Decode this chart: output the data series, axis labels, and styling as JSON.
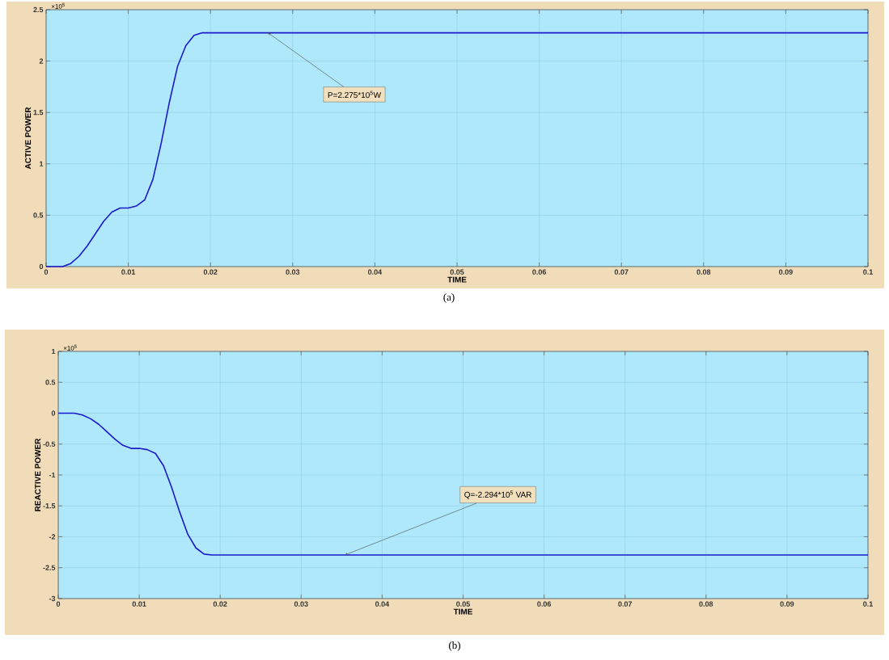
{
  "chart_data": [
    {
      "type": "line",
      "xlabel": "TIME",
      "ylabel": "ACTIVE POWER",
      "color": "#1a1acc",
      "grid": true,
      "x": [
        0,
        0.001,
        0.002,
        0.003,
        0.004,
        0.005,
        0.006,
        0.007,
        0.008,
        0.009,
        0.01,
        0.011,
        0.012,
        0.013,
        0.014,
        0.015,
        0.016,
        0.017,
        0.018,
        0.019,
        0.02,
        0.03,
        0.04,
        0.05,
        0.06,
        0.07,
        0.08,
        0.09,
        0.1
      ],
      "values": [
        0,
        0,
        0,
        0.03,
        0.1,
        0.2,
        0.32,
        0.44,
        0.53,
        0.57,
        0.57,
        0.59,
        0.65,
        0.85,
        1.2,
        1.6,
        1.95,
        2.15,
        2.25,
        2.275,
        2.275,
        2.275,
        2.275,
        2.275,
        2.275,
        2.275,
        2.275,
        2.275,
        2.275
      ],
      "xlim": [
        0,
        0.1
      ],
      "ylim": [
        0,
        2.5
      ],
      "xticks": [
        0,
        0.01,
        0.02,
        0.03,
        0.04,
        0.05,
        0.06,
        0.07,
        0.08,
        0.09,
        0.1
      ],
      "yticks": [
        0,
        0.5,
        1,
        1.5,
        2,
        2.5
      ],
      "annotations": [
        "×10$^{5}$",
        {
          "text": "P=2.275*10$^{5}$W",
          "x": 0.027,
          "y": 2.275
        },
        "(a)"
      ]
    },
    {
      "type": "line",
      "xlabel": "TIME",
      "ylabel": "REACTIVE POWER",
      "color": "#1a1acc",
      "grid": true,
      "x": [
        0,
        0.001,
        0.002,
        0.003,
        0.004,
        0.005,
        0.006,
        0.007,
        0.008,
        0.009,
        0.01,
        0.011,
        0.012,
        0.013,
        0.014,
        0.015,
        0.016,
        0.017,
        0.018,
        0.019,
        0.02,
        0.03,
        0.04,
        0.05,
        0.06,
        0.07,
        0.08,
        0.09,
        0.1
      ],
      "values": [
        0,
        0,
        0,
        -0.03,
        -0.09,
        -0.18,
        -0.3,
        -0.42,
        -0.52,
        -0.57,
        -0.57,
        -0.59,
        -0.65,
        -0.85,
        -1.2,
        -1.6,
        -1.96,
        -2.18,
        -2.28,
        -2.294,
        -2.294,
        -2.294,
        -2.294,
        -2.294,
        -2.294,
        -2.294,
        -2.294,
        -2.294,
        -2.294
      ],
      "xlim": [
        0,
        0.1
      ],
      "ylim": [
        -3,
        1
      ],
      "xticks": [
        0,
        0.01,
        0.02,
        0.03,
        0.04,
        0.05,
        0.06,
        0.07,
        0.08,
        0.09,
        0.1
      ],
      "yticks": [
        -3,
        -2.5,
        -2,
        -1.5,
        -1,
        -0.5,
        0,
        0.5,
        1
      ],
      "annotations": [
        "×10$^{5}$",
        {
          "text": "Q=-2.294*10$^{5}$ VAR",
          "x": 0.0354,
          "y": -2.294
        },
        "(b)"
      ]
    }
  ]
}
